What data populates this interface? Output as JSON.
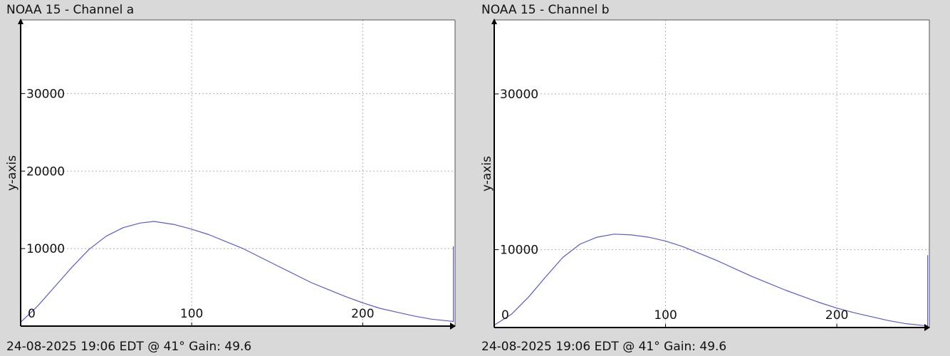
{
  "chart_data": [
    {
      "type": "line",
      "title": "NOAA 15 - Channel a",
      "footer": "24-08-2025 19:06 EDT @ 41° Gain: 49.6",
      "xlabel": "",
      "ylabel": "y-axis",
      "xlim": [
        0,
        254
      ],
      "ylim": [
        0,
        39500
      ],
      "x_ticks": [
        0,
        100,
        200
      ],
      "y_ticks": [
        10000,
        20000,
        30000
      ],
      "grid": true,
      "series": [
        {
          "color": "#5a5ad6",
          "x": [
            0,
            10,
            20,
            30,
            40,
            50,
            60,
            70,
            78,
            90,
            100,
            110,
            120,
            130,
            140,
            150,
            160,
            170,
            180,
            190,
            200,
            210,
            220,
            230,
            240,
            253,
            253
          ],
          "y": [
            500,
            2600,
            5100,
            7600,
            9900,
            11600,
            12700,
            13300,
            13500,
            13100,
            12500,
            11800,
            10900,
            10000,
            8900,
            7800,
            6700,
            5600,
            4700,
            3800,
            3000,
            2300,
            1800,
            1300,
            900,
            600,
            10300
          ]
        }
      ]
    },
    {
      "type": "line",
      "title": "NOAA 15 - Channel b",
      "footer": "24-08-2025 19:06 EDT @ 41° Gain: 49.6",
      "xlabel": "",
      "ylabel": "y-axis",
      "xlim": [
        0,
        254
      ],
      "ylim": [
        0,
        39500
      ],
      "x_ticks": [
        0,
        100,
        200
      ],
      "y_ticks": [
        10000,
        30000
      ],
      "grid": true,
      "series": [
        {
          "color": "#5a5ad6",
          "x": [
            0,
            10,
            20,
            30,
            40,
            50,
            60,
            70,
            80,
            90,
            100,
            110,
            120,
            130,
            140,
            150,
            160,
            170,
            180,
            190,
            200,
            210,
            220,
            230,
            240,
            253,
            253
          ],
          "y": [
            300,
            1700,
            3900,
            6500,
            9000,
            10700,
            11600,
            12000,
            11900,
            11600,
            11100,
            10400,
            9500,
            8600,
            7600,
            6600,
            5700,
            4800,
            4000,
            3200,
            2500,
            1900,
            1400,
            900,
            500,
            200,
            9300
          ]
        }
      ]
    }
  ]
}
